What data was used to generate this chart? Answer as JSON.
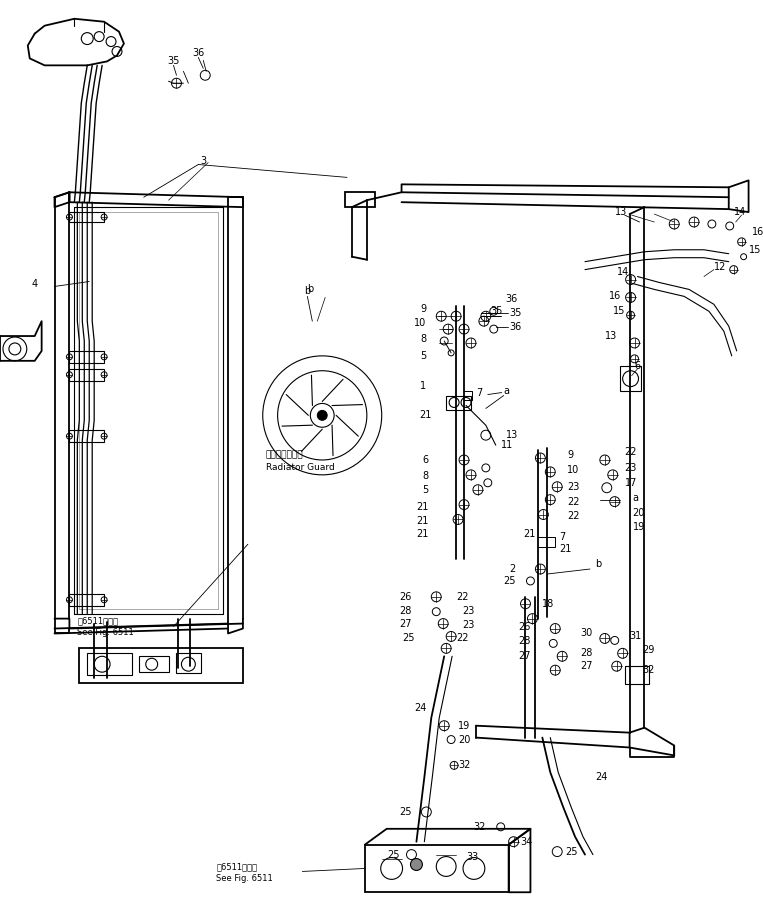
{
  "bg_color": "#ffffff",
  "line_color": "#000000",
  "fig_width": 7.63,
  "fig_height": 9.13,
  "dpi": 100,
  "labels": {
    "radiator_guard_jp": "ラジエタガード",
    "radiator_guard_en": "Radiator Guard",
    "see_fig_jp1": "第6511図参照",
    "see_fig_en1": "See Fig. 6511",
    "see_fig_jp2": "第6511図参照",
    "see_fig_en2": "See Fig. 6511"
  }
}
